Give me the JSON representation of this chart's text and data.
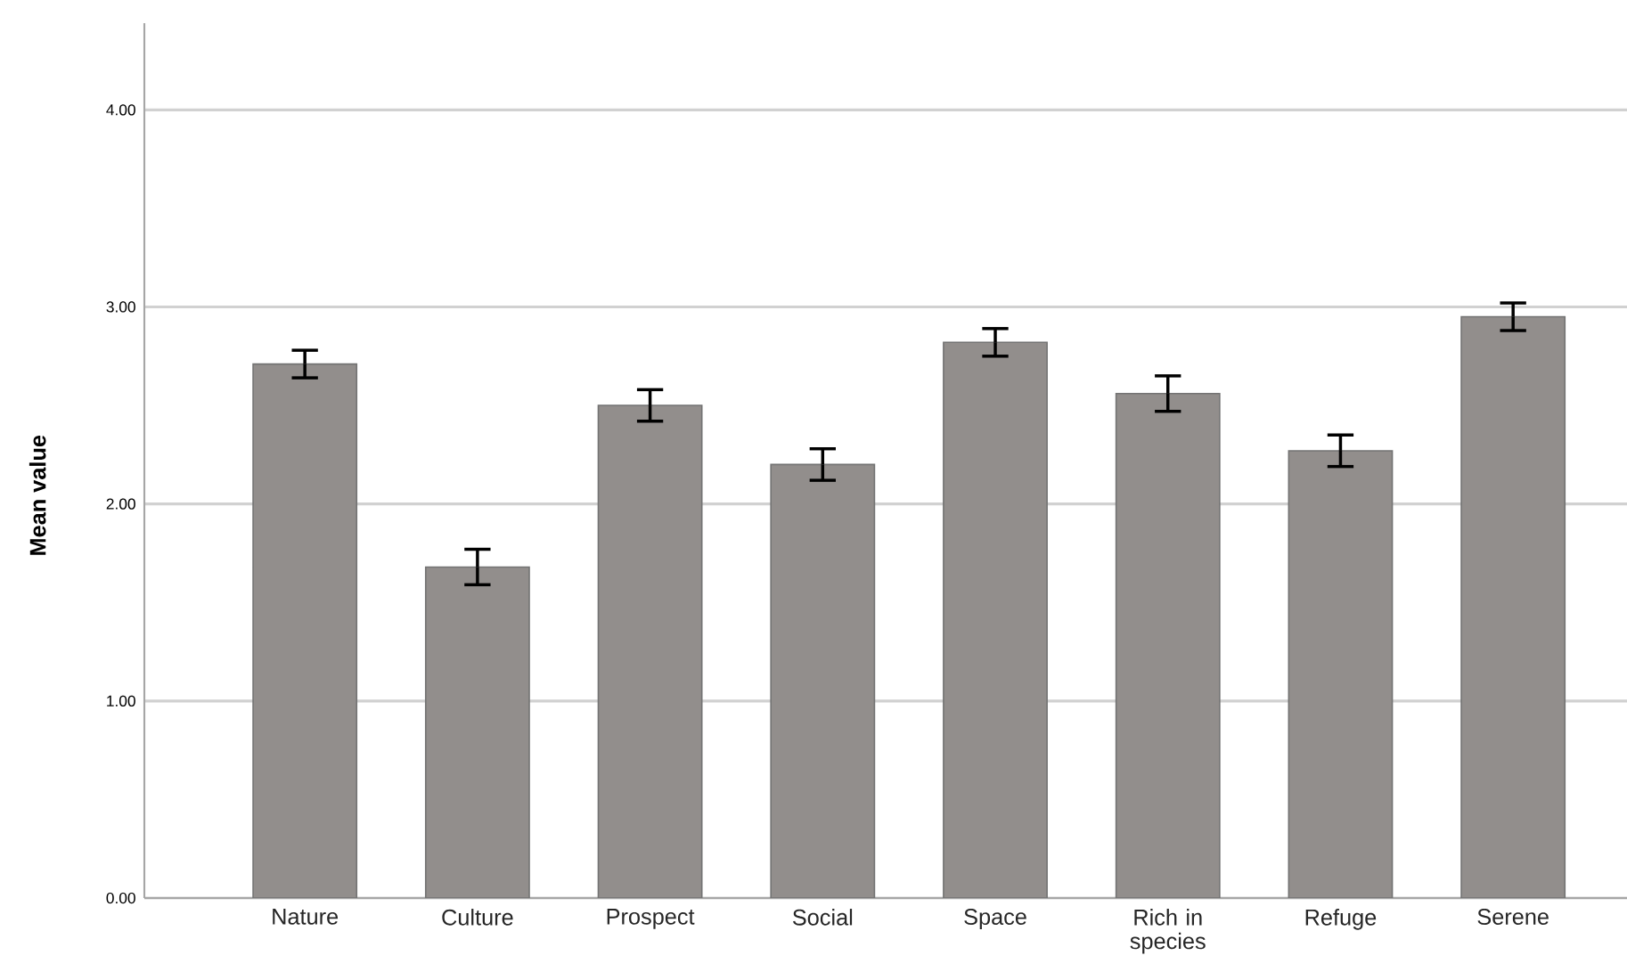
{
  "chart_data": {
    "type": "bar",
    "ylabel": "Mean value",
    "categories": [
      "Nature",
      "Culture",
      "Prospect",
      "Social",
      "Space",
      "Rich in species",
      "Refuge",
      "Serene"
    ],
    "values": [
      2.71,
      1.68,
      2.5,
      2.2,
      2.82,
      2.56,
      2.27,
      2.95
    ],
    "errors": [
      0.07,
      0.09,
      0.08,
      0.08,
      0.07,
      0.09,
      0.08,
      0.07
    ],
    "color": "#928e8c",
    "ylim": [
      0,
      4.44
    ],
    "yticks": [
      {
        "value": 0,
        "label": "0.00"
      },
      {
        "value": 1,
        "label": "1.00"
      },
      {
        "value": 2,
        "label": "2.00"
      },
      {
        "value": 3,
        "label": "3.00"
      },
      {
        "value": 4,
        "label": "4.00"
      }
    ],
    "grid": "y"
  }
}
